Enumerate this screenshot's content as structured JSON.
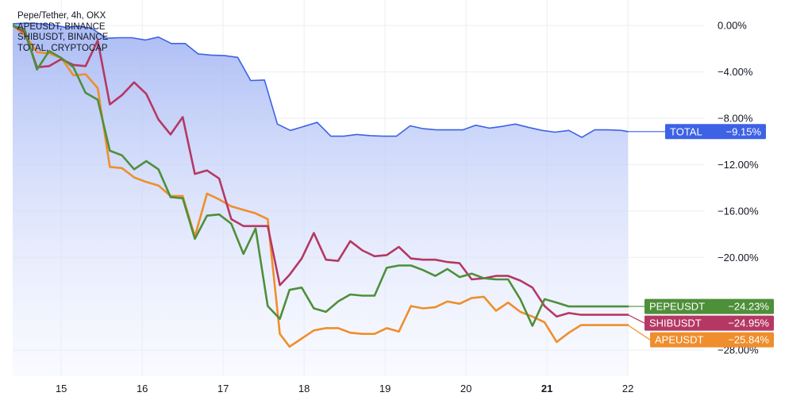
{
  "chart_data": {
    "type": "line",
    "title": "",
    "legend_position": "top-left",
    "legend": [
      "Pepe/Tether, 4h, OKX",
      "APEUSDT, BINANCE",
      "SHIBUSDT, BINANCE",
      "TOTAL, CRYPTOCAP"
    ],
    "x_ticks": [
      {
        "label": "15",
        "x": 15,
        "bold": false
      },
      {
        "label": "16",
        "x": 16,
        "bold": false
      },
      {
        "label": "17",
        "x": 17,
        "bold": false
      },
      {
        "label": "18",
        "x": 18,
        "bold": false
      },
      {
        "label": "19",
        "x": 19,
        "bold": false
      },
      {
        "label": "20",
        "x": 20,
        "bold": false
      },
      {
        "label": "21",
        "x": 21,
        "bold": true
      },
      {
        "label": "22",
        "x": 22,
        "bold": false
      }
    ],
    "y_ticks": [
      "0.00%",
      "−4.00%",
      "−8.00%",
      "−12.00%",
      "−16.00%",
      "−20.00%",
      "−28.00%"
    ],
    "y_tick_values": [
      0,
      -4,
      -8,
      -12,
      -16,
      -20,
      -28
    ],
    "y_unit": "%",
    "xlim": [
      14.4,
      22.95
    ],
    "ylim": [
      -30.25,
      2.2
    ],
    "grid": true,
    "colors": {
      "TOTAL": "#3d62e6",
      "PEPEUSDT": "#4e8f3a",
      "SHIBUSDT": "#b53864",
      "APEUSDT": "#ef8e2c",
      "total_fill_top": "#a6b8f4",
      "total_fill_bottom": "#eef2ff"
    },
    "series": [
      {
        "name": "TOTAL",
        "label_value": "−9.15%",
        "area": true,
        "x": [
          14.4,
          14.56,
          14.73,
          14.89,
          15.05,
          15.22,
          15.38,
          15.55,
          15.71,
          15.87,
          16.04,
          16.2,
          16.36,
          16.53,
          16.69,
          16.85,
          17.02,
          17.18,
          17.34,
          17.51,
          17.67,
          17.83,
          18.0,
          18.16,
          18.33,
          18.49,
          18.65,
          18.82,
          18.98,
          19.14,
          19.31,
          19.47,
          19.63,
          19.8,
          19.96,
          20.12,
          20.29,
          20.45,
          20.61,
          20.78,
          20.94,
          21.1,
          21.27,
          21.43,
          21.59,
          21.76,
          21.92,
          22.0
        ],
        "y": [
          0.15,
          0.2,
          0.16,
          0.05,
          -0.15,
          -0.05,
          -0.25,
          -1.1,
          -1.05,
          -1.05,
          -1.25,
          -1.0,
          -1.55,
          -1.55,
          -2.45,
          -2.55,
          -2.6,
          -2.75,
          -4.75,
          -4.7,
          -8.5,
          -9.05,
          -8.7,
          -8.35,
          -9.55,
          -9.55,
          -9.4,
          -9.5,
          -9.55,
          -9.55,
          -8.65,
          -8.9,
          -9.0,
          -9.0,
          -9.0,
          -8.6,
          -8.85,
          -8.7,
          -8.5,
          -8.8,
          -9.05,
          -9.2,
          -9.05,
          -9.65,
          -9.0,
          -9.0,
          -9.05,
          -9.15
        ]
      },
      {
        "name": "PEPEUSDT",
        "label_value": "−24.23%",
        "x": [
          14.4,
          14.55,
          14.7,
          14.85,
          15.0,
          15.15,
          15.3,
          15.45,
          15.6,
          15.75,
          15.9,
          16.05,
          16.2,
          16.35,
          16.5,
          16.65,
          16.8,
          16.95,
          17.1,
          17.25,
          17.4,
          17.55,
          17.7,
          17.82,
          17.97,
          18.12,
          18.27,
          18.42,
          18.57,
          18.72,
          18.87,
          19.02,
          19.17,
          19.32,
          19.47,
          19.62,
          19.77,
          19.92,
          20.07,
          20.22,
          20.37,
          20.52,
          20.67,
          20.82,
          20.97,
          21.12,
          21.27,
          21.42,
          21.58,
          21.73,
          21.88,
          22.0
        ],
        "y": [
          0.0,
          -0.4,
          -3.8,
          -2.2,
          -2.8,
          -3.6,
          -5.8,
          -6.4,
          -10.8,
          -11.2,
          -12.4,
          -11.7,
          -12.4,
          -14.8,
          -14.9,
          -18.4,
          -16.4,
          -16.3,
          -17.1,
          -19.7,
          -17.5,
          -24.2,
          -25.3,
          -22.8,
          -22.6,
          -24.4,
          -24.7,
          -23.8,
          -23.2,
          -23.3,
          -23.3,
          -20.9,
          -20.7,
          -20.7,
          -21.1,
          -21.6,
          -21.0,
          -21.7,
          -21.4,
          -21.8,
          -21.9,
          -21.9,
          -23.6,
          -25.9,
          -23.6,
          -23.9,
          -24.23,
          -24.23,
          -24.23,
          -24.23,
          -24.23,
          -24.23
        ]
      },
      {
        "name": "SHIBUSDT",
        "label_value": "−24.95%",
        "x": [
          14.4,
          14.55,
          14.7,
          14.85,
          15.0,
          15.15,
          15.3,
          15.45,
          15.6,
          15.75,
          15.9,
          16.05,
          16.2,
          16.35,
          16.5,
          16.65,
          16.8,
          16.95,
          17.1,
          17.25,
          17.4,
          17.55,
          17.7,
          17.82,
          17.97,
          18.12,
          18.27,
          18.42,
          18.57,
          18.72,
          18.87,
          19.02,
          19.17,
          19.32,
          19.47,
          19.62,
          19.77,
          19.92,
          20.07,
          20.22,
          20.37,
          20.52,
          20.67,
          20.82,
          20.97,
          21.12,
          21.27,
          21.42,
          21.58,
          21.73,
          21.88,
          22.0
        ],
        "y": [
          0.0,
          -0.6,
          -3.6,
          -3.5,
          -2.9,
          -3.4,
          -3.5,
          -1.3,
          -6.8,
          -6.0,
          -4.9,
          -5.9,
          -8.1,
          -9.4,
          -7.9,
          -12.8,
          -12.5,
          -13.2,
          -16.7,
          -17.3,
          -17.3,
          -17.3,
          -22.4,
          -21.5,
          -20.1,
          -17.9,
          -20.2,
          -20.3,
          -18.6,
          -19.4,
          -19.9,
          -19.8,
          -19.1,
          -20.1,
          -20.2,
          -20.2,
          -20.4,
          -20.5,
          -21.9,
          -21.8,
          -21.6,
          -21.6,
          -22.0,
          -22.6,
          -24.2,
          -25.1,
          -24.8,
          -24.95,
          -24.95,
          -24.95,
          -24.95,
          -24.95
        ]
      },
      {
        "name": "APEUSDT",
        "label_value": "−25.84%",
        "x": [
          14.4,
          14.55,
          14.7,
          14.85,
          15.0,
          15.15,
          15.3,
          15.45,
          15.6,
          15.75,
          15.9,
          16.05,
          16.2,
          16.35,
          16.5,
          16.65,
          16.8,
          16.95,
          17.1,
          17.25,
          17.4,
          17.55,
          17.7,
          17.82,
          17.97,
          18.12,
          18.27,
          18.42,
          18.57,
          18.72,
          18.87,
          19.02,
          19.17,
          19.32,
          19.47,
          19.62,
          19.77,
          19.92,
          20.07,
          20.22,
          20.37,
          20.52,
          20.67,
          20.82,
          20.97,
          21.12,
          21.27,
          21.42,
          21.58,
          21.73,
          21.88,
          22.0
        ],
        "y": [
          0.0,
          -0.8,
          -2.3,
          -2.4,
          -2.8,
          -4.3,
          -4.2,
          -5.4,
          -12.2,
          -12.3,
          -13.1,
          -13.5,
          -13.8,
          -14.7,
          -14.7,
          -18.2,
          -14.5,
          -15.0,
          -15.6,
          -15.9,
          -16.2,
          -16.7,
          -26.6,
          -27.7,
          -27.0,
          -26.3,
          -26.1,
          -26.1,
          -26.5,
          -26.6,
          -26.6,
          -26.1,
          -26.4,
          -24.2,
          -24.4,
          -24.3,
          -23.8,
          -24.0,
          -23.5,
          -23.4,
          -24.6,
          -23.9,
          -24.7,
          -25.1,
          -25.6,
          -27.3,
          -26.5,
          -25.84,
          -25.84,
          -25.84,
          -25.84,
          -25.84
        ]
      }
    ]
  }
}
